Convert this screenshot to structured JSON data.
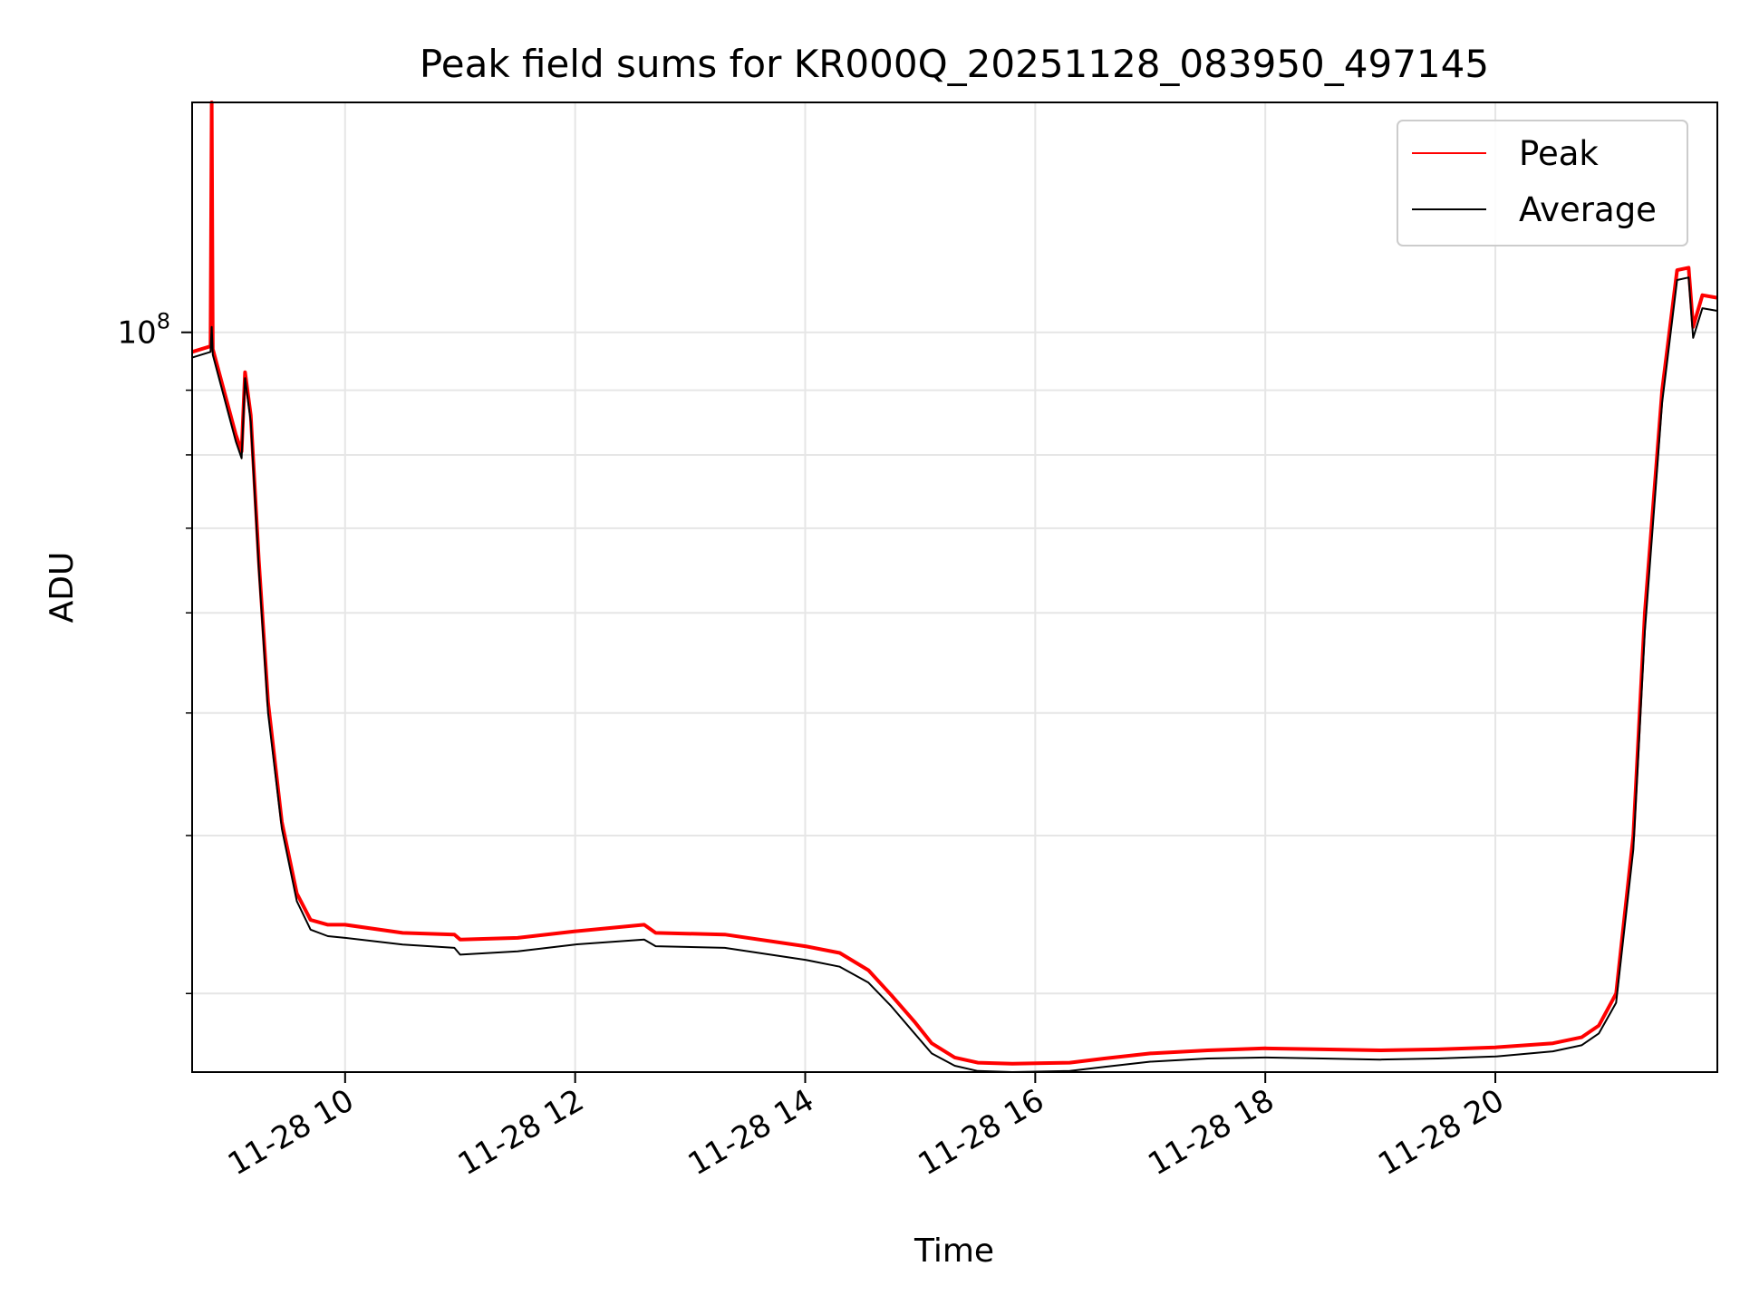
{
  "chart_data": {
    "type": "line",
    "title": "Peak field sums for KR000Q_20251128_083950_497145",
    "xlabel": "Time",
    "ylabel": "ADU",
    "yscale": "log",
    "xlim_hours": [
      8.67,
      21.93
    ],
    "ylim": [
      26000000,
      152000000
    ],
    "x_ticks": [
      {
        "hour": 10,
        "label": "11-28 10"
      },
      {
        "hour": 12,
        "label": "11-28 12"
      },
      {
        "hour": 14,
        "label": "11-28 14"
      },
      {
        "hour": 16,
        "label": "11-28 16"
      },
      {
        "hour": 18,
        "label": "11-28 18"
      },
      {
        "hour": 20,
        "label": "11-28 20"
      }
    ],
    "y_major_ticks": [
      {
        "value": 100000000,
        "label_base": "10",
        "label_exp": "8"
      }
    ],
    "y_minor_ticks": [
      30000000,
      40000000,
      50000000,
      60000000,
      70000000,
      80000000,
      90000000
    ],
    "grid": true,
    "legend_position": "upper-right",
    "series": [
      {
        "name": "Peak",
        "color": "#ff0000",
        "points": [
          [
            8.67,
            96500000
          ],
          [
            8.83,
            97500000
          ],
          [
            8.84,
            152000000
          ],
          [
            8.85,
            97000000
          ],
          [
            9.05,
            83000000
          ],
          [
            9.1,
            80500000
          ],
          [
            9.13,
            93000000
          ],
          [
            9.18,
            86000000
          ],
          [
            9.25,
            66000000
          ],
          [
            9.33,
            51000000
          ],
          [
            9.45,
            41000000
          ],
          [
            9.58,
            36000000
          ],
          [
            9.7,
            34300000
          ],
          [
            9.85,
            34000000
          ],
          [
            10.0,
            34000000
          ],
          [
            10.5,
            33500000
          ],
          [
            10.95,
            33400000
          ],
          [
            11.0,
            33100000
          ],
          [
            11.5,
            33200000
          ],
          [
            12.0,
            33600000
          ],
          [
            12.6,
            34000000
          ],
          [
            12.7,
            33500000
          ],
          [
            13.3,
            33400000
          ],
          [
            14.0,
            32700000
          ],
          [
            14.3,
            32300000
          ],
          [
            14.55,
            31300000
          ],
          [
            14.75,
            29900000
          ],
          [
            14.95,
            28500000
          ],
          [
            15.1,
            27400000
          ],
          [
            15.3,
            26700000
          ],
          [
            15.5,
            26450000
          ],
          [
            15.8,
            26400000
          ],
          [
            16.3,
            26450000
          ],
          [
            16.6,
            26650000
          ],
          [
            17.0,
            26900000
          ],
          [
            17.5,
            27050000
          ],
          [
            18.0,
            27150000
          ],
          [
            18.5,
            27100000
          ],
          [
            19.0,
            27050000
          ],
          [
            19.5,
            27100000
          ],
          [
            20.0,
            27200000
          ],
          [
            20.5,
            27400000
          ],
          [
            20.75,
            27700000
          ],
          [
            20.9,
            28300000
          ],
          [
            21.05,
            30000000
          ],
          [
            21.2,
            40000000
          ],
          [
            21.3,
            60000000
          ],
          [
            21.45,
            90000000
          ],
          [
            21.58,
            112000000
          ],
          [
            21.68,
            112500000
          ],
          [
            21.72,
            101000000
          ],
          [
            21.8,
            107000000
          ],
          [
            21.93,
            106500000
          ]
        ]
      },
      {
        "name": "Average",
        "color": "#000000",
        "points": [
          [
            8.67,
            95500000
          ],
          [
            8.83,
            96500000
          ],
          [
            8.84,
            101000000
          ],
          [
            8.85,
            96000000
          ],
          [
            9.05,
            82000000
          ],
          [
            9.1,
            79500000
          ],
          [
            9.13,
            92000000
          ],
          [
            9.18,
            85000000
          ],
          [
            9.25,
            65000000
          ],
          [
            9.33,
            50000000
          ],
          [
            9.45,
            40500000
          ],
          [
            9.58,
            35500000
          ],
          [
            9.7,
            33700000
          ],
          [
            9.85,
            33300000
          ],
          [
            10.0,
            33200000
          ],
          [
            10.5,
            32800000
          ],
          [
            10.95,
            32600000
          ],
          [
            11.0,
            32200000
          ],
          [
            11.5,
            32400000
          ],
          [
            12.0,
            32800000
          ],
          [
            12.6,
            33100000
          ],
          [
            12.7,
            32700000
          ],
          [
            13.3,
            32600000
          ],
          [
            14.0,
            31900000
          ],
          [
            14.3,
            31500000
          ],
          [
            14.55,
            30600000
          ],
          [
            14.75,
            29300000
          ],
          [
            14.95,
            27900000
          ],
          [
            15.1,
            26900000
          ],
          [
            15.3,
            26300000
          ],
          [
            15.5,
            26050000
          ],
          [
            15.8,
            26000000
          ],
          [
            16.3,
            26050000
          ],
          [
            16.6,
            26250000
          ],
          [
            17.0,
            26500000
          ],
          [
            17.5,
            26650000
          ],
          [
            18.0,
            26700000
          ],
          [
            18.5,
            26650000
          ],
          [
            19.0,
            26600000
          ],
          [
            19.5,
            26650000
          ],
          [
            20.0,
            26750000
          ],
          [
            20.5,
            27000000
          ],
          [
            20.75,
            27300000
          ],
          [
            20.9,
            27900000
          ],
          [
            21.05,
            29500000
          ],
          [
            21.2,
            39000000
          ],
          [
            21.3,
            58000000
          ],
          [
            21.45,
            88000000
          ],
          [
            21.58,
            110000000
          ],
          [
            21.68,
            110500000
          ],
          [
            21.72,
            99000000
          ],
          [
            21.8,
            104500000
          ],
          [
            21.93,
            104000000
          ]
        ]
      }
    ]
  }
}
